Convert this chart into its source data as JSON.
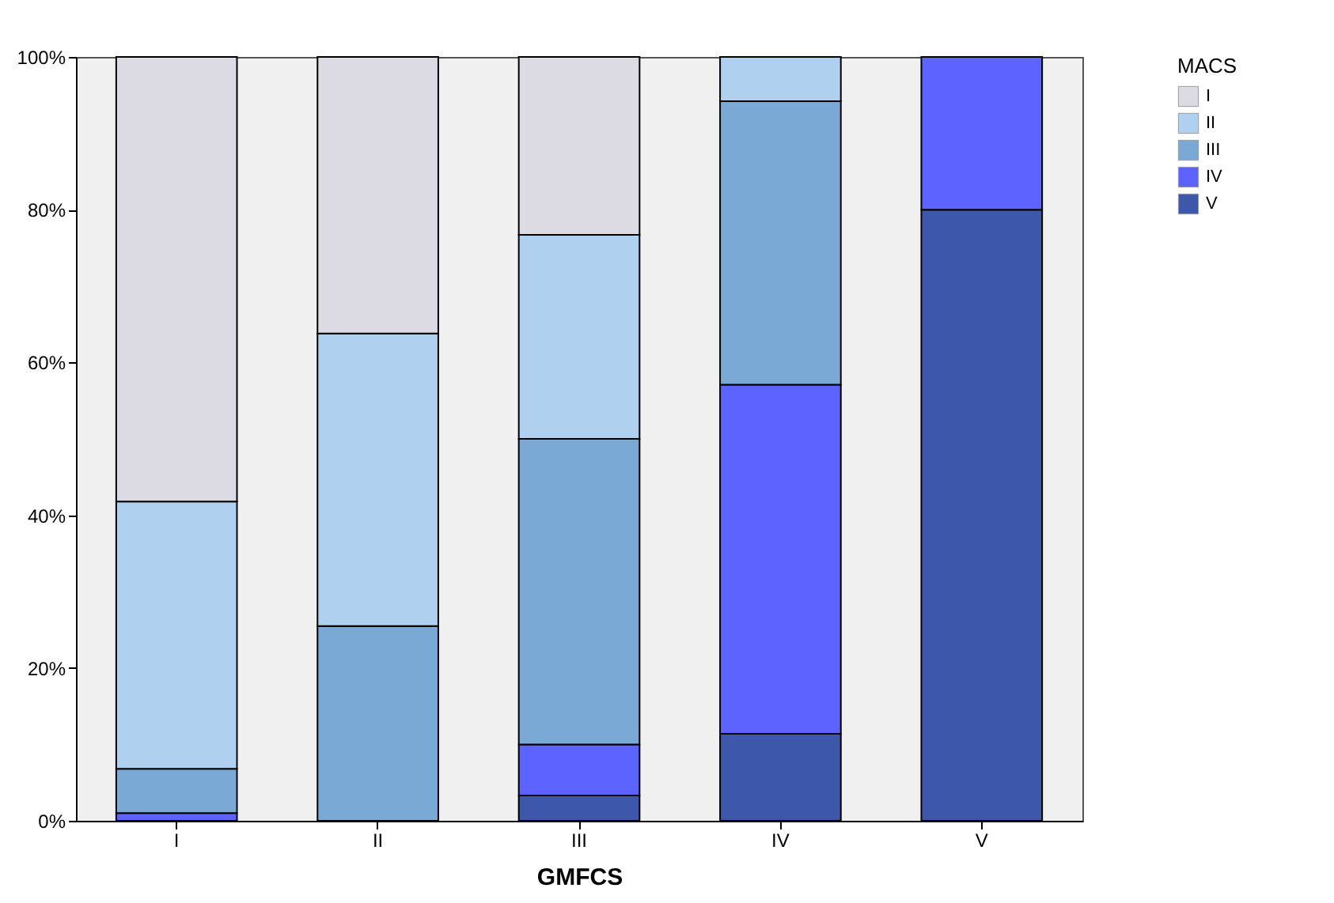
{
  "chart_data": {
    "type": "bar",
    "stacked": true,
    "xlabel": "GMFCS",
    "legend_title": "MACS",
    "legend": "top right",
    "categories": [
      "I",
      "II",
      "III",
      "IV",
      "V"
    ],
    "series": [
      {
        "name": "V",
        "color": "#3d57aa",
        "values": [
          null,
          null,
          3.3,
          11.4,
          80
        ]
      },
      {
        "name": "IV",
        "color": "#5d63fe",
        "values": [
          1,
          null,
          6.7,
          45.7,
          20
        ]
      },
      {
        "name": "III",
        "color": "#7aa9d6",
        "values": [
          5.8,
          25.5,
          40,
          37.1,
          null
        ]
      },
      {
        "name": "II",
        "color": "#afd0ee",
        "values": [
          35,
          38.3,
          26.7,
          5.8,
          null
        ]
      },
      {
        "name": "I",
        "color": "#dcdbe4",
        "values": [
          58.2,
          36.2,
          23.3,
          null,
          null
        ]
      }
    ],
    "ylim": [
      0,
      100
    ],
    "yticks": [
      {
        "value": 0,
        "label": "0%"
      },
      {
        "value": 20,
        "label": "20%"
      },
      {
        "value": 40,
        "label": "40%"
      },
      {
        "value": 60,
        "label": "60%"
      },
      {
        "value": 80,
        "label": "80%"
      },
      {
        "value": 100,
        "label": "100%"
      }
    ]
  }
}
